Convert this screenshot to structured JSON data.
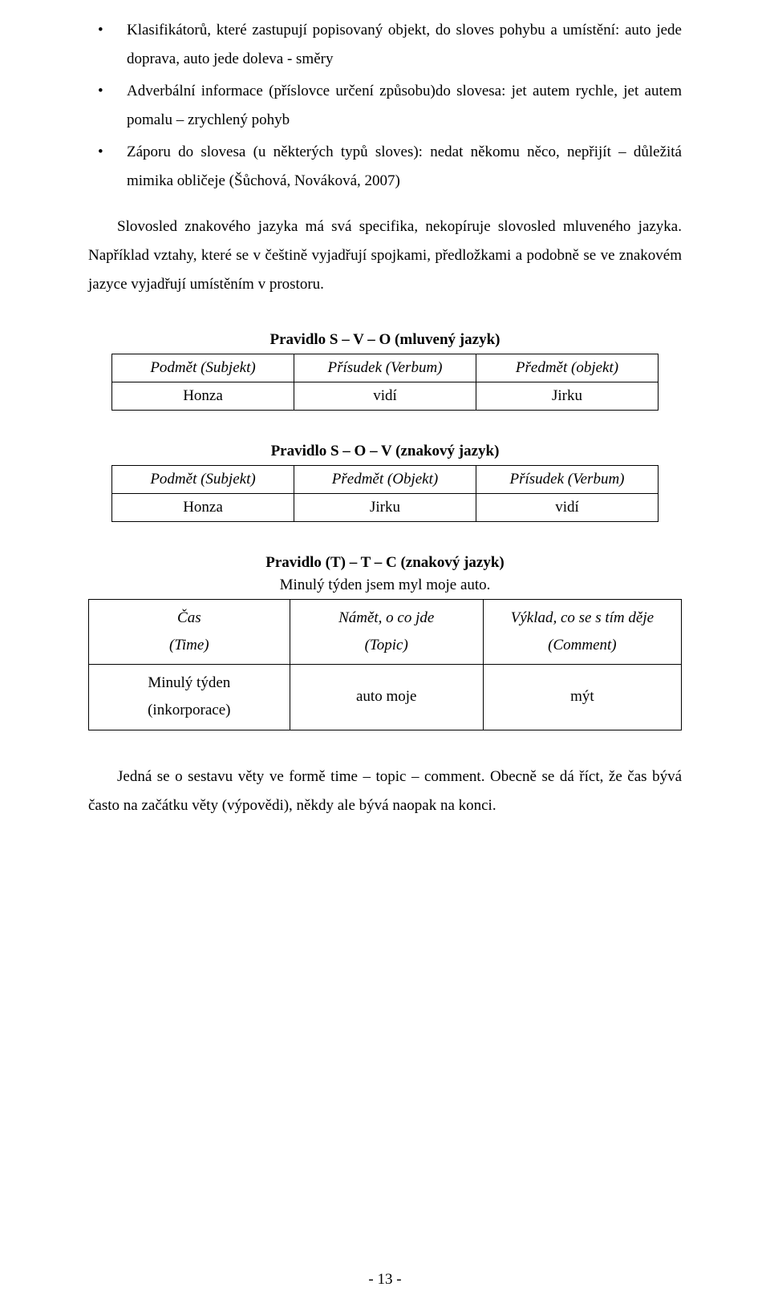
{
  "bullets": {
    "b1": "Klasifikátorů, které zastupují popisovaný objekt, do sloves pohybu a umístění: auto jede doprava, auto jede doleva - směry",
    "b2": "Adverbální informace (příslovce určení způsobu)do slovesa: jet autem rychle, jet autem pomalu – zrychlený pohyb",
    "b3": "Záporu do slovesa (u některých typů sloves): nedat někomu něco, nepřijít – důležitá mimika obličeje (Šůchová, Nováková, 2007)"
  },
  "para1": "Slovosled znakového jazyka má svá specifika, nekopíruje slovosled mluveného jazyka. Například vztahy, které se v češtině vyjadřují spojkami, předložkami a podobně se ve znakovém jazyce vyjadřují umístěním v prostoru.",
  "table1": {
    "title": "Pravidlo S – V – O (mluvený jazyk)",
    "h": {
      "c1": "Podmět (Subjekt)",
      "c2": "Přísudek (Verbum)",
      "c3": "Předmět (objekt)"
    },
    "r": {
      "c1": "Honza",
      "c2": "vidí",
      "c3": "Jirku"
    }
  },
  "table2": {
    "title": "Pravidlo S – O – V (znakový jazyk)",
    "h": {
      "c1": "Podmět (Subjekt)",
      "c2": "Předmět (Objekt)",
      "c3": "Přísudek (Verbum)"
    },
    "r": {
      "c1": "Honza",
      "c2": "Jirku",
      "c3": "vidí"
    }
  },
  "table3": {
    "title": "Pravidlo (T) – T – C (znakový jazyk)",
    "subtitle": "Minulý týden jsem myl moje auto.",
    "h1": {
      "c1": "Čas",
      "c2": "Námět, o co jde",
      "c3": "Výklad, co se s tím děje"
    },
    "h2": {
      "c1": "(Time)",
      "c2": "(Topic)",
      "c3": "(Comment)"
    },
    "r1": {
      "c1": "Minulý týden",
      "c2": "auto moje",
      "c3": "mýt"
    },
    "r2": {
      "c1": "(inkorporace)",
      "c2": "",
      "c3": ""
    }
  },
  "para2": "Jedná se o sestavu věty ve formě time – topic – comment. Obecně se dá říct, že čas bývá často na začátku věty (výpovědi), někdy ale bývá naopak na konci.",
  "pagenum": "- 13 -"
}
